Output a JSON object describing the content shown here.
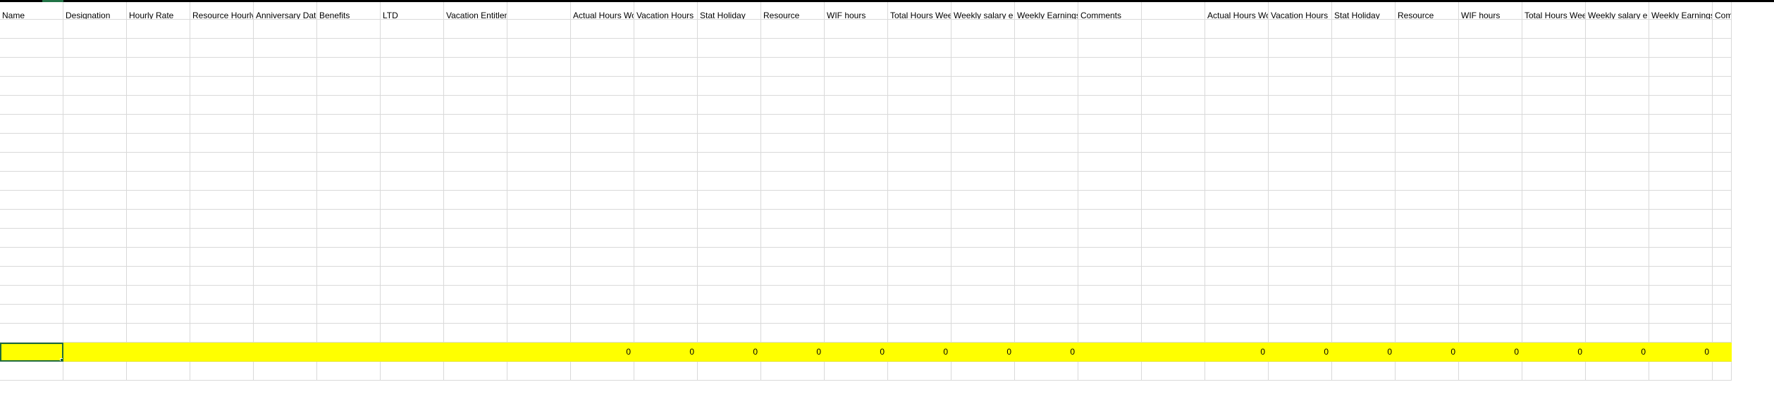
{
  "sheet": {
    "headers": [
      "Name",
      "Designation",
      "Hourly Rate",
      "Resource Hourly",
      "Anniversary Date",
      "Benefits",
      "LTD",
      "Vacation Entitlement",
      "",
      "Actual Hours Wo",
      "Vacation Hours",
      "Stat Holiday",
      "Resource",
      "WIF hours",
      "Total Hours Wee",
      "Weekly salary e",
      "Weekly Earnings",
      "Comments",
      "",
      "Actual Hours Wo",
      "Vacation Hours",
      "Stat Holiday",
      "Resource",
      "WIF hours",
      "Total Hours Wee",
      "Weekly salary e",
      "Weekly Earnings",
      "Comments"
    ],
    "total_row": [
      "",
      "",
      "",
      "",
      "",
      "",
      "",
      "",
      "",
      "0",
      "0",
      "0",
      "0",
      "0",
      "0",
      "0",
      "0",
      "",
      "",
      "0",
      "0",
      "0",
      "0",
      "0",
      "0",
      "0",
      "0",
      ""
    ],
    "highlight_color": "#ffff00",
    "selection_color": "#1e6b3c"
  }
}
